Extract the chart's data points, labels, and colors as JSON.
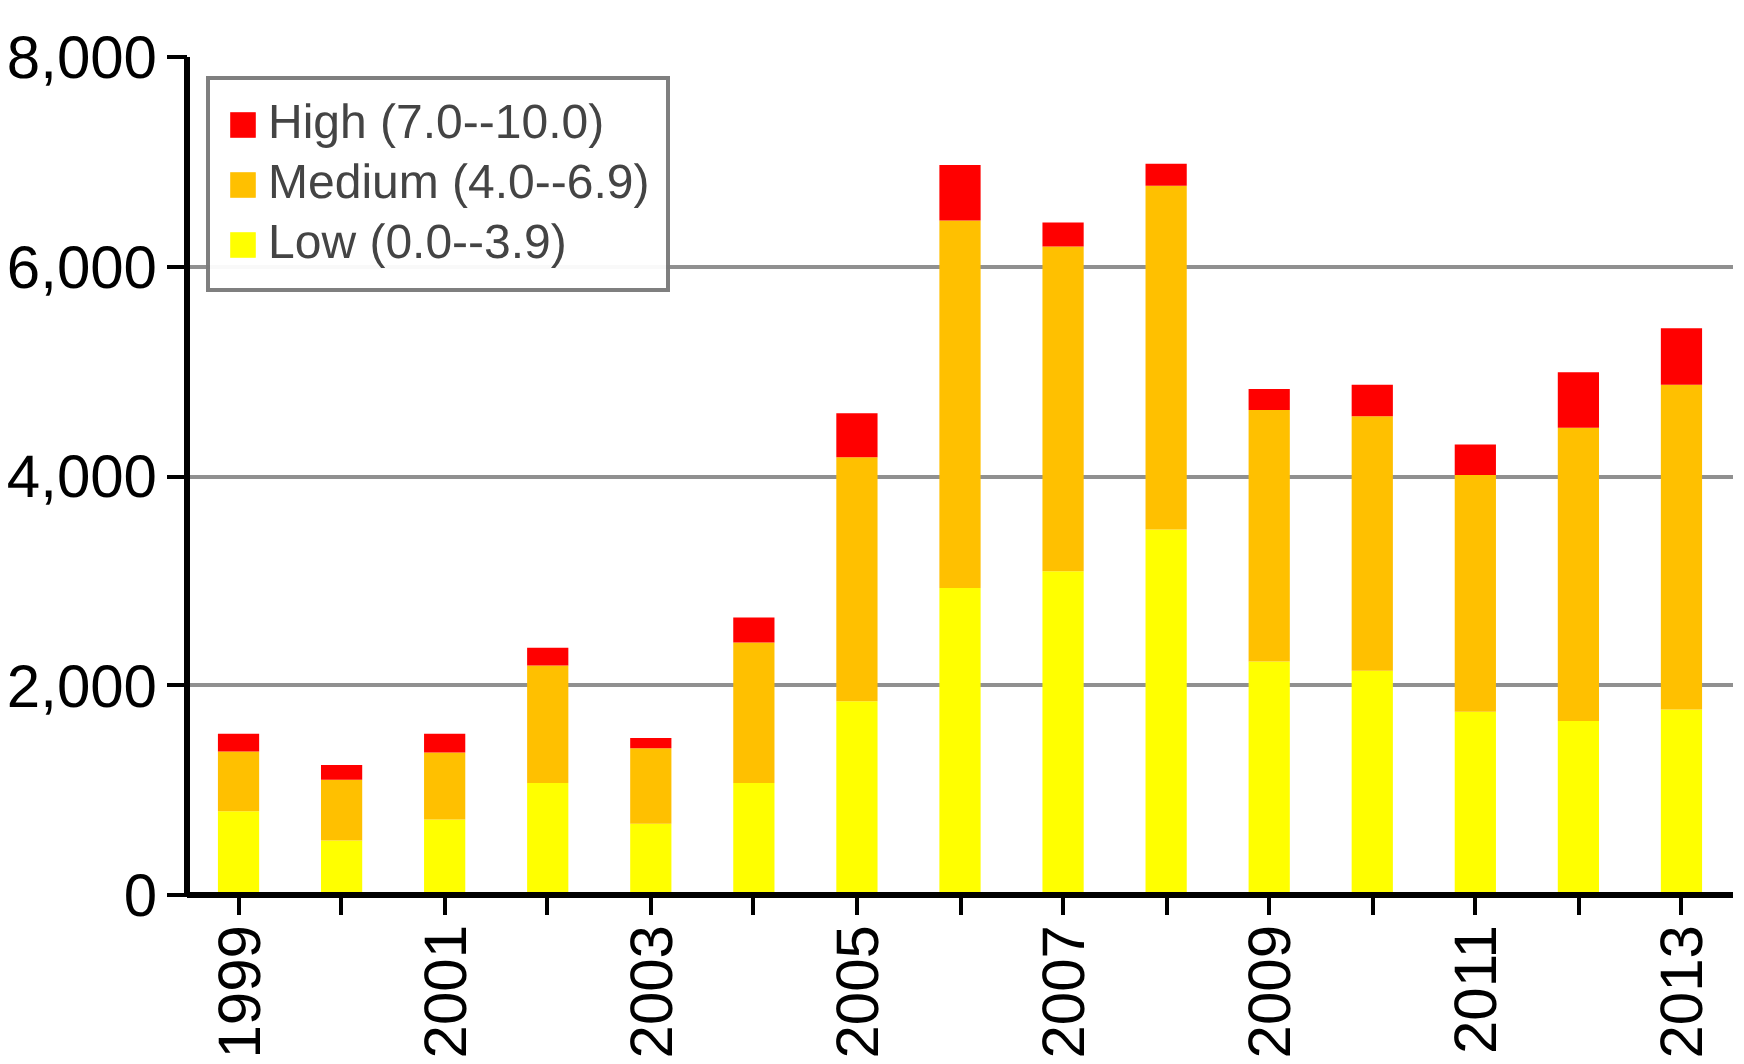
{
  "chart_data": {
    "type": "bar",
    "stacked": true,
    "categories": [
      "1999",
      null,
      "2001",
      null,
      "2003",
      null,
      "2005",
      null,
      "2007",
      null,
      "2009",
      null,
      "2011",
      null,
      "2013"
    ],
    "series": [
      {
        "name": "Low (0.0--3.9)",
        "color": "#ffff00",
        "values": [
          800,
          520,
          720,
          1070,
          680,
          1070,
          1850,
          2930,
          3090,
          3490,
          2230,
          2140,
          1750,
          1660,
          1770
        ]
      },
      {
        "name": "Medium (4.0--6.9)",
        "color": "#ffc000",
        "values": [
          570,
          580,
          640,
          1120,
          720,
          1340,
          2330,
          3510,
          3100,
          3280,
          2400,
          2430,
          2260,
          2800,
          3100
        ]
      },
      {
        "name": "High (7.0--10.0)",
        "color": "#ff0000",
        "values": [
          170,
          140,
          180,
          170,
          100,
          240,
          420,
          530,
          230,
          210,
          200,
          300,
          290,
          530,
          540
        ]
      }
    ],
    "ylim": [
      0,
      8000
    ],
    "yticks": [
      {
        "value": 0,
        "label": "0"
      },
      {
        "value": 2000,
        "label": "2,000"
      },
      {
        "value": 4000,
        "label": "4,000"
      },
      {
        "value": 6000,
        "label": "6,000"
      },
      {
        "value": 8000,
        "label": "8,000"
      }
    ],
    "grid": "y",
    "legend": "top left"
  }
}
